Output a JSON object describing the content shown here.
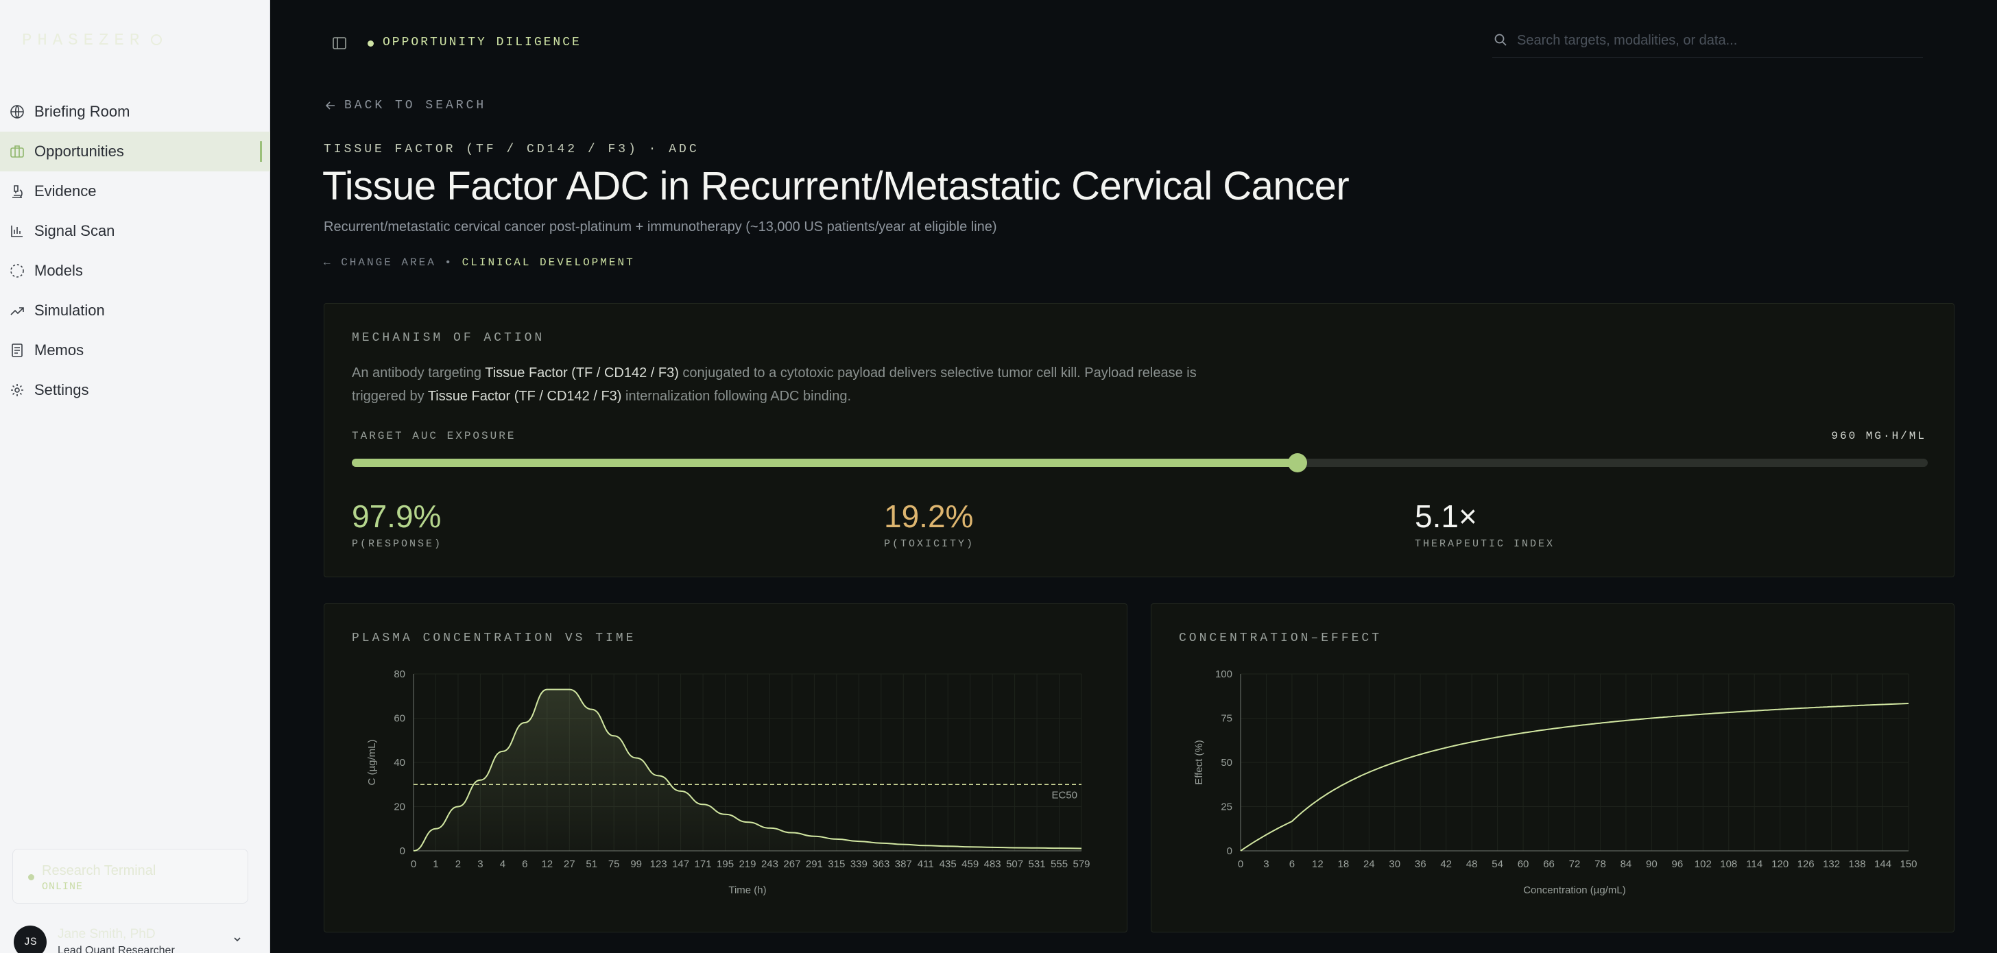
{
  "sidebar": {
    "logo": "PHASEZER",
    "items": [
      {
        "label": "Briefing Room",
        "icon": "globe-icon",
        "active": false
      },
      {
        "label": "Opportunities",
        "icon": "briefcase-icon",
        "active": true
      },
      {
        "label": "Evidence",
        "icon": "microscope-icon",
        "active": false
      },
      {
        "label": "Signal Scan",
        "icon": "bar-chart-icon",
        "active": false
      },
      {
        "label": "Models",
        "icon": "dashed-circle-icon",
        "active": false
      },
      {
        "label": "Simulation",
        "icon": "trend-up-icon",
        "active": false
      },
      {
        "label": "Memos",
        "icon": "document-icon",
        "active": false
      },
      {
        "label": "Settings",
        "icon": "gear-icon",
        "active": false
      }
    ],
    "status": {
      "name": "Research Terminal",
      "state": "ONLINE"
    },
    "user": {
      "initials": "JS",
      "name": "Jane Smith, PhD",
      "role": "Lead Quant Researcher"
    }
  },
  "header": {
    "breadcrumb": "OPPORTUNITY DILIGENCE",
    "search_placeholder": "Search targets, modalities, or data..."
  },
  "page": {
    "back_label": "BACK TO SEARCH",
    "eyebrow": "TISSUE FACTOR (TF / CD142 / F3) · ADC",
    "title": "Tissue Factor ADC in Recurrent/Metastatic Cervical Cancer",
    "subtitle": "Recurrent/metastatic cervical cancer post-platinum + immunotherapy (~13,000 US patients/year at eligible line)",
    "change_area": "← CHANGE AREA •",
    "area": "CLINICAL DEVELOPMENT"
  },
  "moa": {
    "title": "MECHANISM OF ACTION",
    "text_1": "An antibody targeting ",
    "target_1": "Tissue Factor (TF / CD142 / F3)",
    "text_2": " conjugated to a cytotoxic payload delivers selective tumor cell kill. Payload release is triggered by ",
    "target_2": "Tissue Factor (TF / CD142 / F3)",
    "text_3": " internalization following ADC binding.",
    "slider_label": "TARGET AUC EXPOSURE",
    "slider_value_label": "960 MG·H/ML",
    "slider_fraction": 0.6,
    "metrics": [
      {
        "value": "97.9%",
        "label": "P(RESPONSE)"
      },
      {
        "value": "19.2%",
        "label": "P(TOXICITY)"
      },
      {
        "value": "5.1×",
        "label": "THERAPEUTIC INDEX"
      }
    ],
    "colors": {
      "accent": "#a9cc7d",
      "response": "#b5d68d",
      "toxicity": "#ddb56f"
    }
  },
  "chart_data": [
    {
      "type": "area",
      "title": "PLASMA CONCENTRATION VS TIME",
      "xlabel": "Time (h)",
      "ylabel": "C (µg/mL)",
      "ylim": [
        0,
        80
      ],
      "yticks": [
        0,
        20,
        40,
        60,
        80
      ],
      "xticks": [
        "0",
        "1",
        "2",
        "3",
        "4",
        "6",
        "12",
        "27",
        "51",
        "75",
        "99",
        "123",
        "147",
        "171",
        "195",
        "219",
        "243",
        "267",
        "291",
        "315",
        "339",
        "363",
        "387",
        "411",
        "435",
        "459",
        "483",
        "507",
        "531",
        "555",
        "579"
      ],
      "series": [
        {
          "values": [
            0,
            10,
            20,
            32,
            45,
            58,
            73,
            73,
            64,
            52,
            42,
            34,
            27,
            21,
            16.5,
            13,
            10.3,
            8.2,
            6.6,
            5.3,
            4.3,
            3.5,
            2.9,
            2.4,
            2.1,
            1.8,
            1.6,
            1.4,
            1.3,
            1.2,
            1.1
          ]
        }
      ],
      "reference_line": {
        "label": "EC50",
        "y": 30
      }
    },
    {
      "type": "line",
      "title": "CONCENTRATION–EFFECT",
      "xlabel": "Concentration (µg/mL)",
      "ylabel": "Effect (%)",
      "ylim": [
        0,
        100
      ],
      "xlim": [
        0,
        150
      ],
      "yticks": [
        0,
        25,
        50,
        75,
        100
      ],
      "xticks": [
        0,
        3,
        6,
        12,
        18,
        24,
        30,
        36,
        42,
        48,
        54,
        60,
        66,
        72,
        78,
        84,
        90,
        96,
        102,
        108,
        114,
        120,
        126,
        132,
        138,
        144,
        150
      ],
      "emax": 100,
      "ec50": 30
    }
  ]
}
